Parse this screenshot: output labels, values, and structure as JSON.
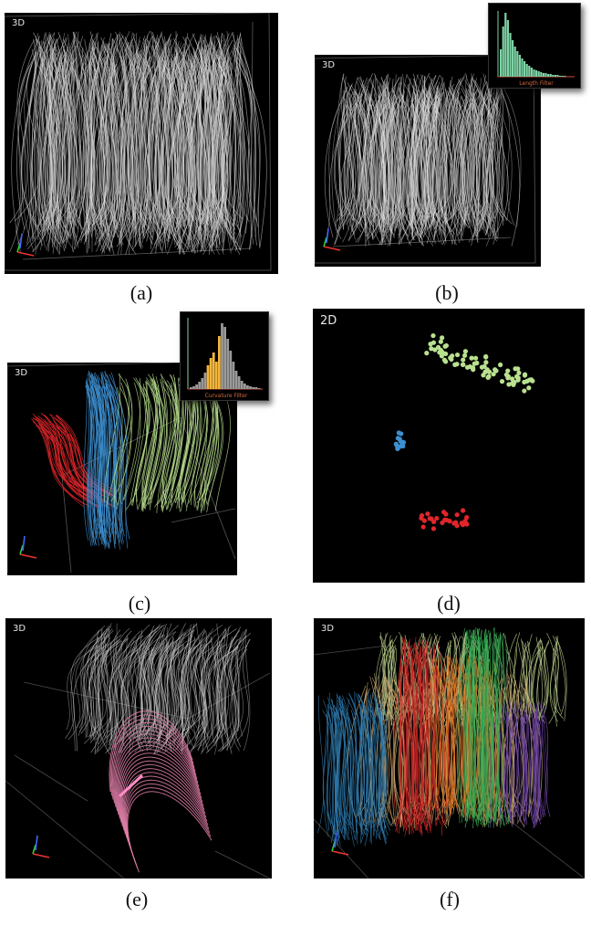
{
  "panels": {
    "a": {
      "view_label": "3D",
      "caption": "(a)"
    },
    "b": {
      "view_label": "3D",
      "caption": "(b)",
      "histogram_xlabel": "Length Filter"
    },
    "c": {
      "view_label": "3D",
      "caption": "(c)",
      "histogram_xlabel": "Curvature Filter"
    },
    "d": {
      "view_label": "2D",
      "caption": "(d)"
    },
    "e": {
      "view_label": "3D",
      "caption": "(e)"
    },
    "f": {
      "view_label": "3D",
      "caption": "(f)"
    }
  },
  "colors": {
    "fiber_gray": "#cfcfcf",
    "cluster_green": "#b9e08f",
    "cluster_blue": "#3d8fd1",
    "cluster_red": "#e0262a",
    "highlight_pink": "#e07fa8",
    "hist_green": "#7ed4a6",
    "hist_orange": "#f2b73c",
    "hist_gray": "#9a9a9a"
  },
  "axis_gizmo": [
    "x-axis-red",
    "y-axis-green",
    "z-axis-blue"
  ]
}
